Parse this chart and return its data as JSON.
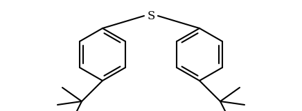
{
  "title": "",
  "background_color": "#ffffff",
  "line_color": "#000000",
  "line_width": 1.5,
  "font_size": 12,
  "S_label": "S",
  "figsize": [
    4.36,
    1.61
  ],
  "dpi": 100
}
